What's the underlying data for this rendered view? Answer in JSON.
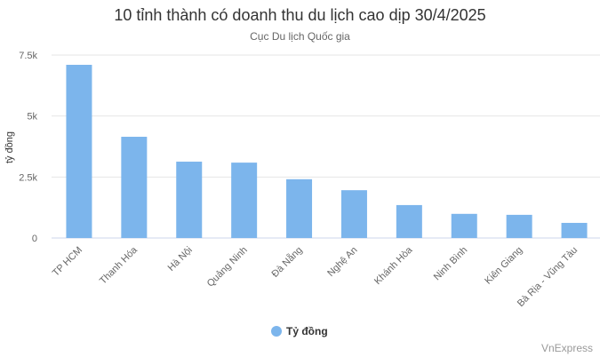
{
  "chart_data": {
    "type": "bar",
    "title": "10 tỉnh thành có doanh thu du lịch cao dịp 30/4/2025",
    "subtitle": "Cục Du lịch Quốc gia",
    "xlabel": "",
    "ylabel": "tỷ đồng",
    "categories": [
      "TP HCM",
      "Thanh Hóa",
      "Hà Nội",
      "Quảng Ninh",
      "Đà Nẵng",
      "Nghệ An",
      "Khánh Hòa",
      "Ninh Bình",
      "Kiên Giang",
      "Bà Rịa - Vũng Tàu"
    ],
    "series": [
      {
        "name": "Tỷ đồng",
        "color": "#7cb5ec",
        "values": [
          7100,
          4150,
          3130,
          3090,
          2410,
          1960,
          1350,
          990,
          950,
          620
        ]
      }
    ],
    "ylim": [
      0,
      7500
    ],
    "yticks": [
      0,
      2500,
      5000,
      7500
    ],
    "ytick_labels": [
      "0",
      "2.5k",
      "5k",
      "7.5k"
    ],
    "grid": true,
    "legend_position": "bottom"
  },
  "credit": "VnExpress"
}
